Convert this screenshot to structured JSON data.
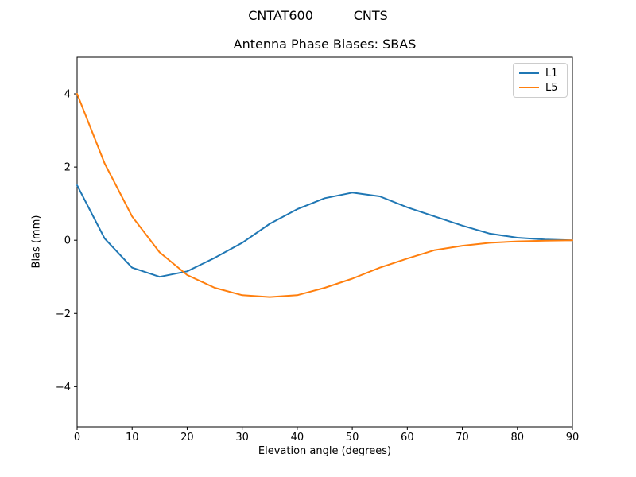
{
  "figure": {
    "suptitle": "CNTAT600          CNTS",
    "title": "Antenna Phase Biases: SBAS",
    "xlabel": "Elevation angle (degrees)",
    "ylabel": "Bias (mm)"
  },
  "chart_data": {
    "type": "line",
    "title": "Antenna Phase Biases: SBAS",
    "suptitle": "CNTAT600          CNTS",
    "xlabel": "Elevation angle (degrees)",
    "ylabel": "Bias (mm)",
    "xlim": [
      0,
      90
    ],
    "ylim": [
      -5.1,
      5.0
    ],
    "xticks": [
      0,
      10,
      20,
      30,
      40,
      50,
      60,
      70,
      80,
      90
    ],
    "yticks": [
      -4,
      -2,
      0,
      2,
      4
    ],
    "grid": false,
    "legend_position": "upper right",
    "x": [
      0,
      5,
      10,
      15,
      20,
      25,
      30,
      35,
      40,
      45,
      50,
      55,
      60,
      65,
      70,
      75,
      80,
      85,
      90
    ],
    "series": [
      {
        "name": "L1",
        "color": "#1f77b4",
        "values": [
          1.5,
          0.05,
          -0.75,
          -1.0,
          -0.85,
          -0.48,
          -0.07,
          0.45,
          0.85,
          1.15,
          1.3,
          1.2,
          0.9,
          0.65,
          0.4,
          0.18,
          0.07,
          0.02,
          0.0
        ]
      },
      {
        "name": "L5",
        "color": "#ff7f0e",
        "values": [
          4.0,
          2.1,
          0.65,
          -0.33,
          -0.95,
          -1.3,
          -1.5,
          -1.55,
          -1.5,
          -1.3,
          -1.05,
          -0.75,
          -0.5,
          -0.27,
          -0.15,
          -0.07,
          -0.03,
          -0.01,
          0.0
        ]
      }
    ],
    "axis_color": "#000000",
    "background_color": "#ffffff"
  }
}
